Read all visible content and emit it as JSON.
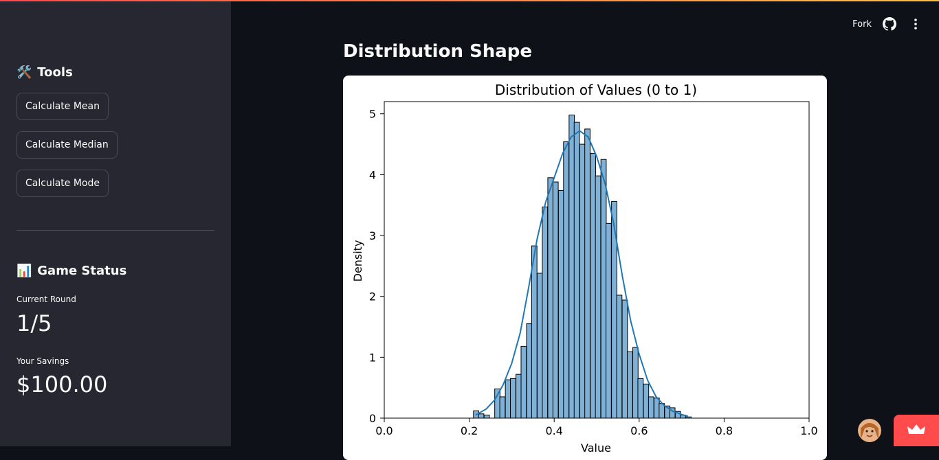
{
  "sidebar": {
    "tools_title": "Tools",
    "tools_emoji": "🛠️",
    "buttons": [
      "Calculate Mean",
      "Calculate Median",
      "Calculate Mode"
    ],
    "status_title": "Game Status",
    "status_emoji": "📊",
    "metrics": [
      {
        "label": "Current Round",
        "value": "1/5"
      },
      {
        "label": "Your Savings",
        "value": "$100.00"
      }
    ]
  },
  "header": {
    "fork_label": "Fork",
    "github_icon": "github-icon",
    "menu_icon": "kebab-menu-icon"
  },
  "main": {
    "title": "Distribution Shape"
  },
  "chart_data": {
    "type": "bar",
    "title": "Distribution of Values (0 to 1)",
    "xlabel": "Value",
    "ylabel": "Density",
    "xlim": [
      0.0,
      1.0
    ],
    "ylim": [
      0,
      5.2
    ],
    "xticks": [
      "0.0",
      "0.2",
      "0.4",
      "0.6",
      "0.8",
      "1.0"
    ],
    "yticks": [
      "0",
      "1",
      "2",
      "3",
      "4",
      "5"
    ],
    "bin_width": 0.0125,
    "bin_starts": [
      0.21,
      0.222,
      0.235,
      0.247,
      0.26,
      0.272,
      0.285,
      0.297,
      0.31,
      0.322,
      0.335,
      0.347,
      0.36,
      0.372,
      0.385,
      0.397,
      0.41,
      0.422,
      0.435,
      0.447,
      0.46,
      0.472,
      0.485,
      0.497,
      0.51,
      0.522,
      0.535,
      0.547,
      0.56,
      0.572,
      0.585,
      0.597,
      0.61,
      0.622,
      0.635,
      0.647,
      0.66,
      0.672,
      0.685,
      0.697,
      0.71
    ],
    "densities": [
      0.12,
      0.07,
      0.05,
      0.0,
      0.48,
      0.35,
      0.63,
      0.65,
      0.72,
      1.18,
      1.55,
      2.83,
      2.38,
      3.47,
      3.95,
      3.88,
      3.74,
      4.54,
      4.98,
      4.86,
      4.5,
      4.75,
      4.35,
      3.98,
      4.25,
      3.2,
      3.56,
      2.02,
      1.94,
      1.09,
      1.16,
      0.65,
      0.56,
      0.35,
      0.33,
      0.24,
      0.2,
      0.17,
      0.11,
      0.05,
      0.02
    ],
    "kde": {
      "x": [
        0.215,
        0.24,
        0.26,
        0.28,
        0.3,
        0.32,
        0.34,
        0.36,
        0.38,
        0.4,
        0.42,
        0.44,
        0.46,
        0.48,
        0.5,
        0.52,
        0.54,
        0.56,
        0.58,
        0.6,
        0.62,
        0.64,
        0.66,
        0.68,
        0.7,
        0.715
      ],
      "y": [
        0.05,
        0.15,
        0.3,
        0.55,
        0.9,
        1.4,
        2.15,
        2.95,
        3.55,
        3.95,
        4.35,
        4.62,
        4.72,
        4.62,
        4.3,
        3.85,
        3.2,
        2.35,
        1.6,
        1.05,
        0.62,
        0.35,
        0.2,
        0.11,
        0.06,
        0.03
      ]
    },
    "bar_color": "#7fb0d6",
    "line_color": "#1f77b4",
    "grid": false
  }
}
